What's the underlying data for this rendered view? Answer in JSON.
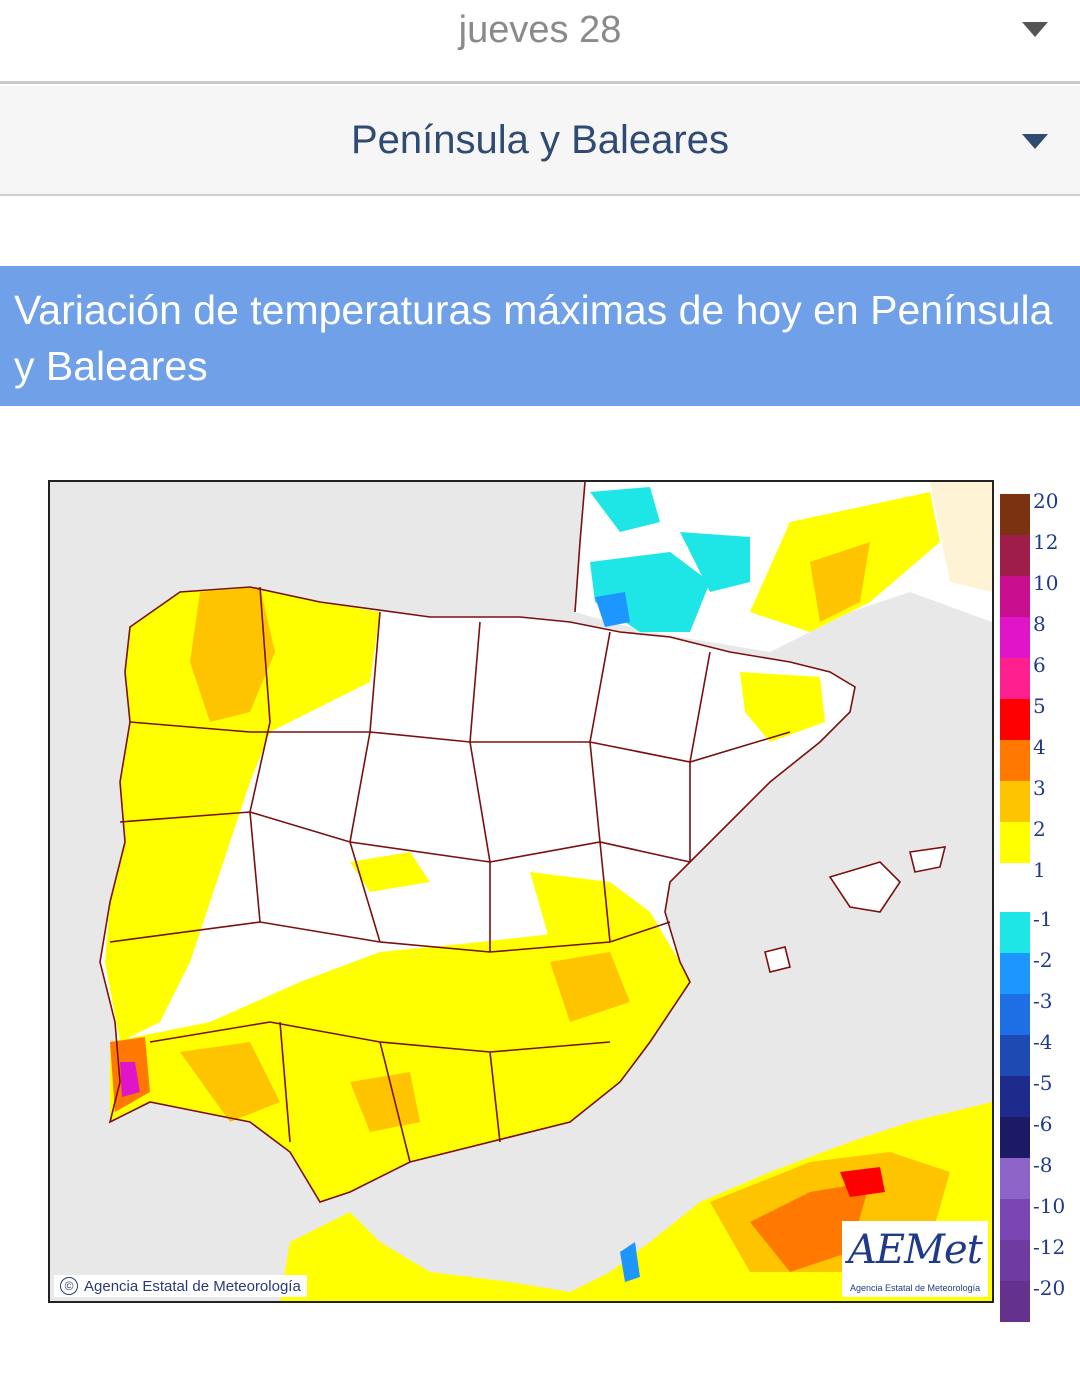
{
  "day_selector": {
    "label": "jueves 28"
  },
  "region_selector": {
    "label": "Península y Baleares"
  },
  "section": {
    "title": "Variación de temperaturas máximas de hoy en Península y Baleares"
  },
  "map": {
    "credit": "Agencia Estatal de Meteorología",
    "logo": {
      "text": "AEMet",
      "subtitle": "Agencia Estatal de Meteorología"
    },
    "legend": {
      "warm": [
        {
          "label": "20",
          "color": "#7a3210"
        },
        {
          "label": "12",
          "color": "#9e1d4a"
        },
        {
          "label": "10",
          "color": "#c8108f"
        },
        {
          "label": "8",
          "color": "#e014c8"
        },
        {
          "label": "6",
          "color": "#ff1f8f"
        },
        {
          "label": "5",
          "color": "#ff0000"
        },
        {
          "label": "4",
          "color": "#ff7800"
        },
        {
          "label": "3",
          "color": "#ffc400"
        },
        {
          "label": "2",
          "color": "#ffff00"
        },
        {
          "label": "1",
          "color": "#ffffff"
        }
      ],
      "cold": [
        {
          "label": "-1",
          "color": "#1ee6e6"
        },
        {
          "label": "-2",
          "color": "#1e96ff"
        },
        {
          "label": "-3",
          "color": "#1e6ee6"
        },
        {
          "label": "-4",
          "color": "#1e4ab4"
        },
        {
          "label": "-5",
          "color": "#1e2a8c"
        },
        {
          "label": "-6",
          "color": "#1c1a64"
        },
        {
          "label": "-8",
          "color": "#8c64c8"
        },
        {
          "label": "-10",
          "color": "#7a46b4"
        },
        {
          "label": "-12",
          "color": "#6e3ca0"
        },
        {
          "label": "-20",
          "color": "#64328c"
        }
      ]
    }
  }
}
